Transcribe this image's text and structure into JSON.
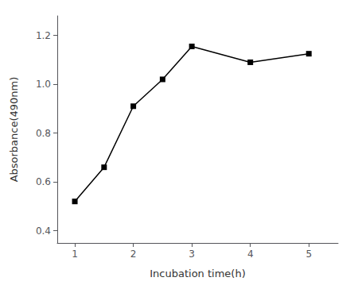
{
  "chart_data": {
    "type": "line",
    "x": [
      1,
      1.5,
      2,
      2.5,
      3,
      4,
      5
    ],
    "values": [
      0.52,
      0.66,
      0.91,
      1.02,
      1.155,
      1.09,
      1.125
    ],
    "xlabel": "Incubation time(h)",
    "ylabel": "Absorbance(490nm)",
    "xlim": [
      0.7,
      5.5
    ],
    "ylim": [
      0.35,
      1.28
    ],
    "xticks": [
      1,
      2,
      3,
      4,
      5
    ],
    "yticks": [
      0.4,
      0.6,
      0.8,
      {
        "value": 1.0,
        "label": "1.0"
      },
      1.2
    ],
    "color": "black",
    "marker": "square",
    "grid": false
  }
}
